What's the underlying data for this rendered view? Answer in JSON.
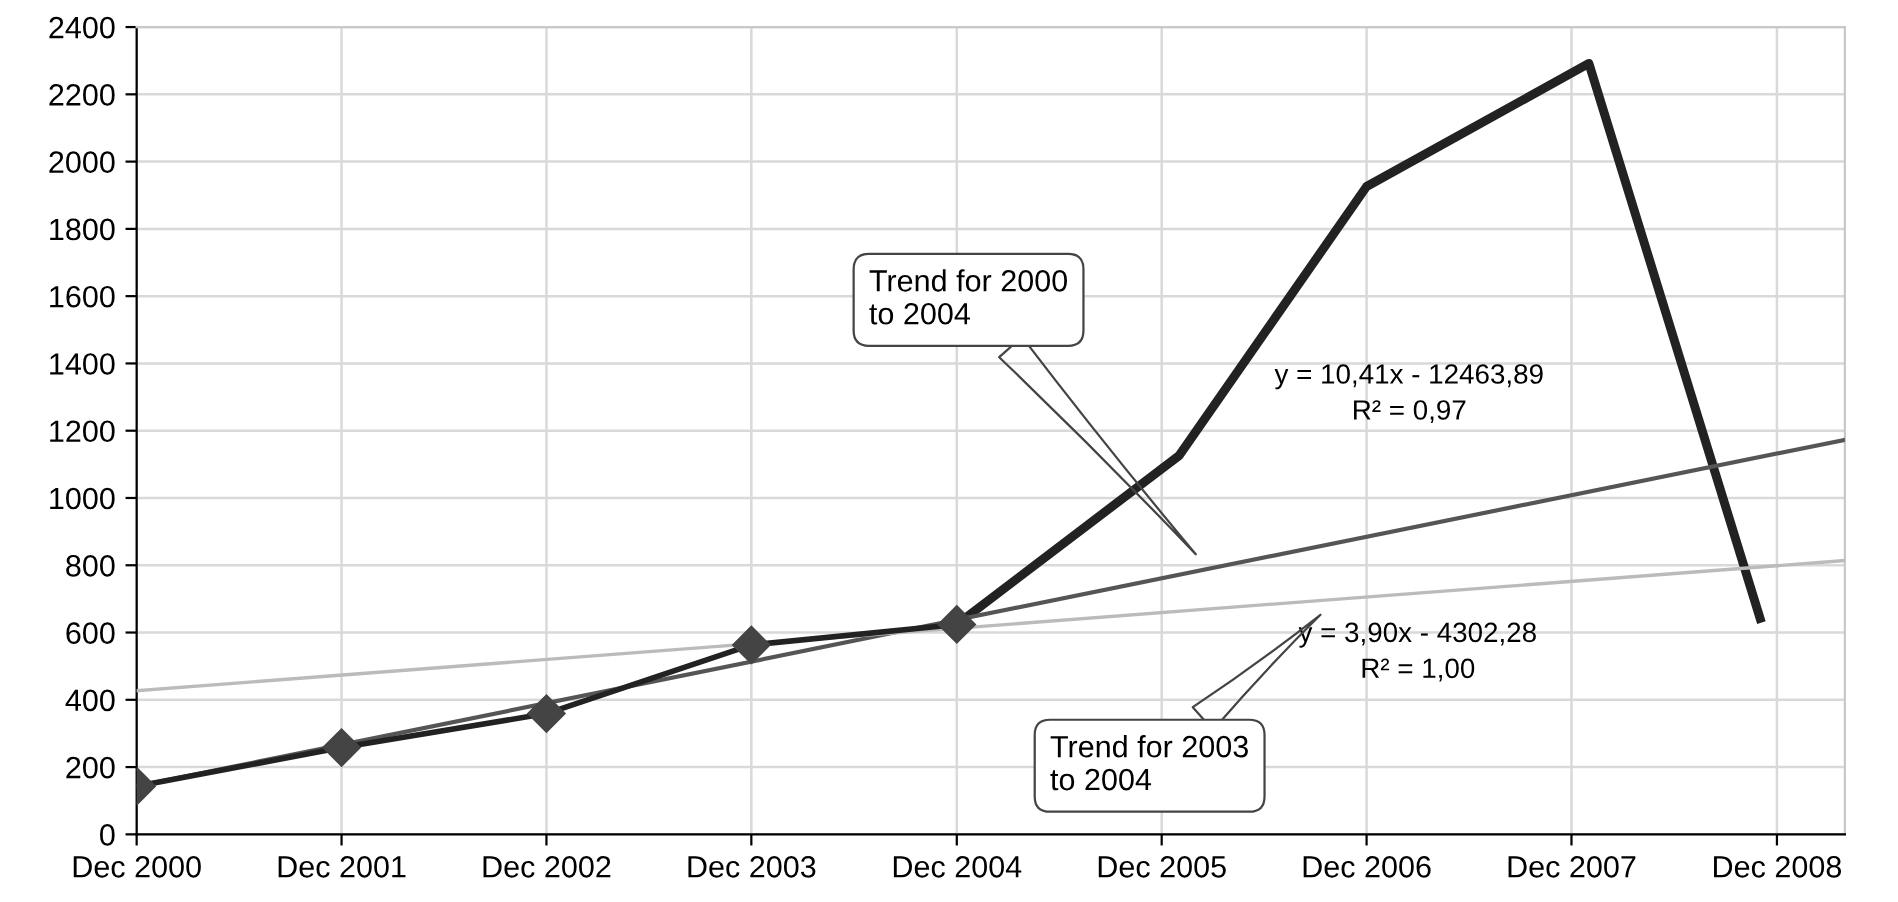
{
  "chart_data": {
    "type": "line",
    "series": [
      {
        "color": "#222222",
        "marker": "diamond",
        "x": [
          "2000-12",
          "2001-12",
          "2002-12",
          "2003-12",
          "2004-12"
        ],
        "values": [
          143,
          258,
          359,
          563,
          624
        ]
      },
      {
        "color": "#222222",
        "marker": "none",
        "x": [
          "2004-12",
          "2006-01",
          "2006-12",
          "2008-01",
          "2008-11"
        ],
        "values": [
          624,
          1126,
          1926,
          2292,
          642
        ]
      },
      {
        "color": "#555555",
        "marker": "none",
        "x": [
          "2000-12",
          "2009-04"
        ],
        "values": [
          143,
          1173
        ]
      },
      {
        "color": "#bbbbbb",
        "marker": "none",
        "x": [
          "2000-12",
          "2009-04"
        ],
        "values": [
          427,
          814
        ]
      }
    ],
    "xlim": [
      "2000-12",
      "2009-04"
    ],
    "xticks": [
      {
        "value": "2000-12",
        "label": "Dec 2000"
      },
      {
        "value": "2001-12",
        "label": "Dec 2001"
      },
      {
        "value": "2002-12",
        "label": "Dec 2002"
      },
      {
        "value": "2003-12",
        "label": "Dec 2003"
      },
      {
        "value": "2004-12",
        "label": "Dec 2004"
      },
      {
        "value": "2005-12",
        "label": "Dec 2005"
      },
      {
        "value": "2006-12",
        "label": "Dec 2006"
      },
      {
        "value": "2007-12",
        "label": "Dec 2007"
      },
      {
        "value": "2008-12",
        "label": "Dec 2008"
      }
    ],
    "ylim": [
      0,
      2400
    ],
    "yticks": [
      0,
      200,
      400,
      600,
      800,
      1000,
      1200,
      1400,
      1600,
      1800,
      2000,
      2200,
      2400
    ],
    "grid": true,
    "legend": false,
    "annotations": [
      "Trend for 2000\nto 2004",
      "Trend for 2003\nto 2004",
      "y = 10,41x - 12463,89\nR² = 0,97",
      "y = 3,90x - 4302,28\nR² = 1,00"
    ]
  }
}
